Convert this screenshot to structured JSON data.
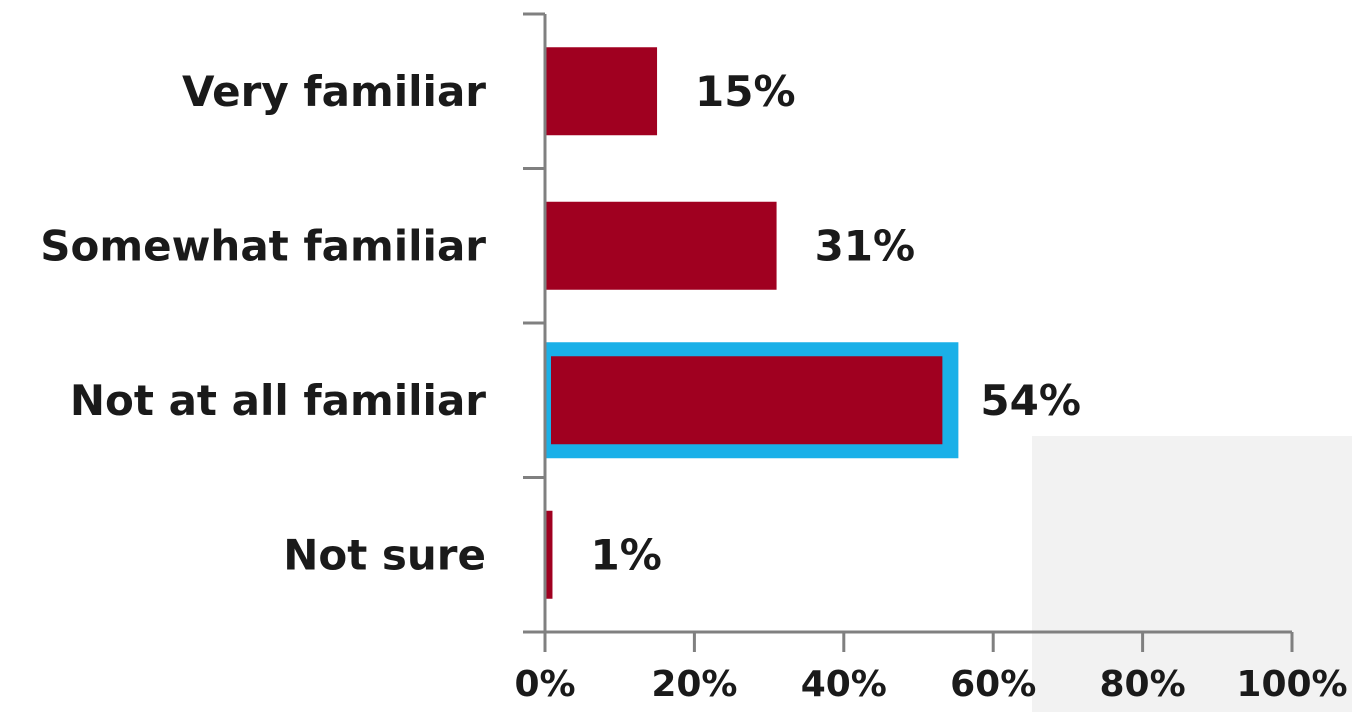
{
  "chart_data": {
    "type": "bar",
    "orientation": "horizontal",
    "categories": [
      "Very familiar",
      "Somewhat familiar",
      "Not at all familiar",
      "Not sure"
    ],
    "values": [
      15,
      31,
      54,
      1
    ],
    "data_labels": [
      "15%",
      "31%",
      "54%",
      "1%"
    ],
    "xlim": [
      0,
      100
    ],
    "x_ticks": [
      0,
      20,
      40,
      60,
      80,
      100
    ],
    "x_tick_labels": [
      "0%",
      "20%",
      "40%",
      "60%",
      "80%",
      "100%"
    ],
    "title": "",
    "xlabel": "",
    "ylabel": "",
    "grid": false,
    "legend": "none",
    "highlighted_category": "Not at all familiar",
    "colors": {
      "bar": "#a00020",
      "highlight_border": "#1ab0e8",
      "axis": "#808080",
      "text": "#1a1a1a"
    }
  }
}
